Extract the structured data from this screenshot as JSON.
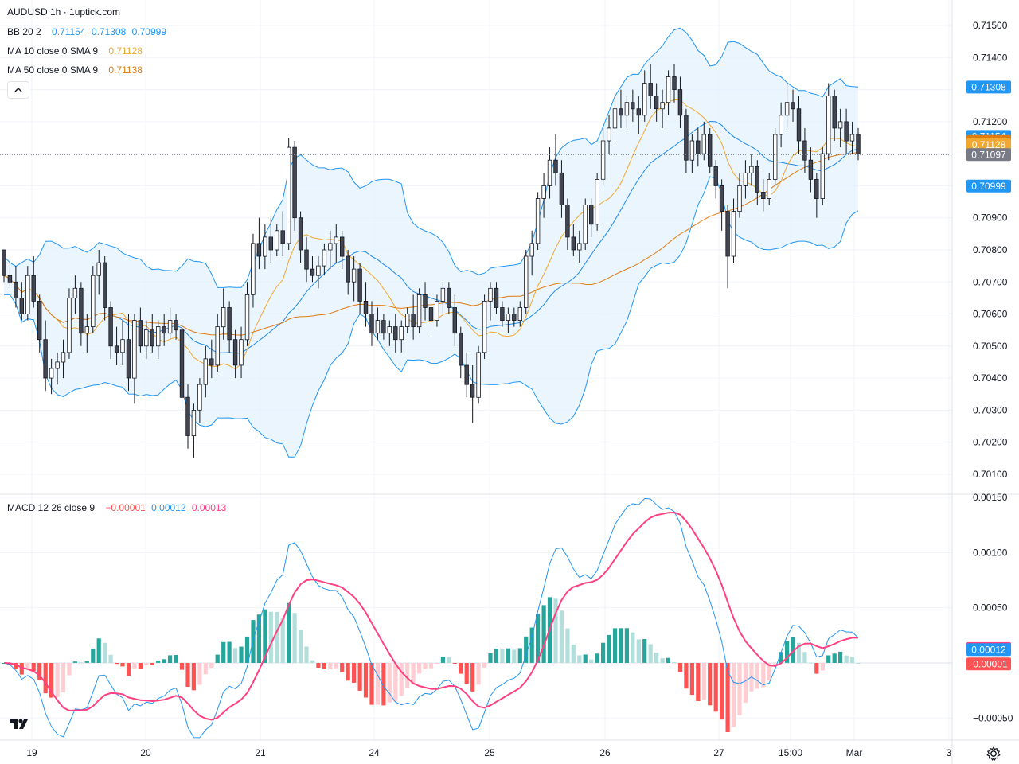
{
  "header": {
    "title": "AUDUSD 1h · 1uptick.com",
    "bb": {
      "label": "BB 20 2",
      "v1": "0.71154",
      "v2": "0.71308",
      "v3": "0.70999"
    },
    "ma10": {
      "label": "MA 10 close 0 SMA 9",
      "value": "0.71128"
    },
    "ma50": {
      "label": "MA 50 close 0 SMA 9",
      "value": "0.71138"
    },
    "macd": {
      "label": "MACD 12 26 close 9",
      "hist": "−0.00001",
      "macd": "0.00012",
      "signal": "0.00013"
    },
    "collapse_icon": "chevron-up-icon"
  },
  "colors": {
    "up_candle": "#ffffff",
    "down_candle": "#434651",
    "bb_line": "#2196f3",
    "bb_fill": "#e3f2fd",
    "ma10": "#f0a830",
    "ma50": "#e07b10",
    "macd_line": "#2196f3",
    "signal_line": "#ff4081",
    "hist_up_strong": "#26a69a",
    "hist_up_weak": "#b2dfdb",
    "hist_down_strong": "#ff5252",
    "hist_down_weak": "#ffcdd2",
    "last_price": "#787b86"
  },
  "price_axis": {
    "ticks": [
      "0.71500",
      "0.71400",
      "0.71300",
      "0.71200",
      "0.71100",
      "0.71000",
      "0.70900",
      "0.70800",
      "0.70700",
      "0.70600",
      "0.70500",
      "0.70400",
      "0.70300",
      "0.70200",
      "0.70100"
    ],
    "badges": [
      {
        "label": "0.71308",
        "color": "#2196f3"
      },
      {
        "label": "0.71154",
        "color": "#2196f3"
      },
      {
        "label": "0.71138",
        "color": "#e07b10"
      },
      {
        "label": "0.71128",
        "color": "#f0a830"
      },
      {
        "label": "0.71097",
        "color": "#787b86"
      },
      {
        "label": "0.70999",
        "color": "#2196f3"
      }
    ]
  },
  "macd_axis": {
    "ticks": [
      "0.00150",
      "0.00100",
      "0.00050",
      "−0.00050"
    ],
    "badges": [
      {
        "label": "0.00013",
        "color": "#ff4081"
      },
      {
        "label": "0.00012",
        "color": "#2196f3"
      },
      {
        "label": "-0.00001",
        "color": "#ff5252"
      }
    ]
  },
  "time_axis": {
    "labels": [
      "19",
      "20",
      "21",
      "24",
      "25",
      "26",
      "27",
      "15:00",
      "Mar",
      "3"
    ]
  },
  "icons": {
    "logo": "tradingview-logo-icon",
    "settings": "gear-icon"
  },
  "chart_data": {
    "type": "candlestick",
    "symbol": "AUDUSD",
    "interval": "1h",
    "price_range": [
      0.7007,
      0.7151
    ],
    "last_price": 0.71097,
    "series": [
      {
        "o": 0.708,
        "h": 0.708,
        "l": 0.707,
        "c": 0.7072
      },
      {
        "o": 0.7072,
        "h": 0.7076,
        "l": 0.7068,
        "c": 0.707
      },
      {
        "o": 0.707,
        "h": 0.7075,
        "l": 0.7062,
        "c": 0.7065
      },
      {
        "o": 0.7065,
        "h": 0.707,
        "l": 0.7058,
        "c": 0.706
      },
      {
        "o": 0.706,
        "h": 0.7075,
        "l": 0.7058,
        "c": 0.7072
      },
      {
        "o": 0.7072,
        "h": 0.7078,
        "l": 0.7062,
        "c": 0.7064
      },
      {
        "o": 0.7064,
        "h": 0.7066,
        "l": 0.7048,
        "c": 0.7052
      },
      {
        "o": 0.7052,
        "h": 0.7058,
        "l": 0.7036,
        "c": 0.704
      },
      {
        "o": 0.704,
        "h": 0.7046,
        "l": 0.7035,
        "c": 0.7043
      },
      {
        "o": 0.7043,
        "h": 0.7048,
        "l": 0.7038,
        "c": 0.7045
      },
      {
        "o": 0.7045,
        "h": 0.7052,
        "l": 0.704,
        "c": 0.7048
      },
      {
        "o": 0.7048,
        "h": 0.7068,
        "l": 0.7046,
        "c": 0.7065
      },
      {
        "o": 0.7065,
        "h": 0.7072,
        "l": 0.706,
        "c": 0.7068
      },
      {
        "o": 0.7068,
        "h": 0.707,
        "l": 0.705,
        "c": 0.7054
      },
      {
        "o": 0.7054,
        "h": 0.706,
        "l": 0.7048,
        "c": 0.7056
      },
      {
        "o": 0.7056,
        "h": 0.7075,
        "l": 0.7054,
        "c": 0.7072
      },
      {
        "o": 0.7072,
        "h": 0.708,
        "l": 0.7066,
        "c": 0.7076
      },
      {
        "o": 0.7076,
        "h": 0.7078,
        "l": 0.7058,
        "c": 0.7062
      },
      {
        "o": 0.7062,
        "h": 0.7064,
        "l": 0.7046,
        "c": 0.705
      },
      {
        "o": 0.705,
        "h": 0.7056,
        "l": 0.7044,
        "c": 0.7048
      },
      {
        "o": 0.7048,
        "h": 0.7058,
        "l": 0.7044,
        "c": 0.7052
      },
      {
        "o": 0.7052,
        "h": 0.706,
        "l": 0.7036,
        "c": 0.704
      },
      {
        "o": 0.704,
        "h": 0.706,
        "l": 0.7032,
        "c": 0.7058
      },
      {
        "o": 0.7058,
        "h": 0.7062,
        "l": 0.7048,
        "c": 0.705
      },
      {
        "o": 0.705,
        "h": 0.7058,
        "l": 0.7046,
        "c": 0.7055
      },
      {
        "o": 0.7055,
        "h": 0.706,
        "l": 0.7048,
        "c": 0.705
      },
      {
        "o": 0.705,
        "h": 0.7058,
        "l": 0.7046,
        "c": 0.7056
      },
      {
        "o": 0.7056,
        "h": 0.706,
        "l": 0.705,
        "c": 0.7054
      },
      {
        "o": 0.7054,
        "h": 0.7062,
        "l": 0.7052,
        "c": 0.7058
      },
      {
        "o": 0.7058,
        "h": 0.706,
        "l": 0.7052,
        "c": 0.7055
      },
      {
        "o": 0.7055,
        "h": 0.7058,
        "l": 0.703,
        "c": 0.7034
      },
      {
        "o": 0.7034,
        "h": 0.7038,
        "l": 0.7018,
        "c": 0.7022
      },
      {
        "o": 0.7022,
        "h": 0.7032,
        "l": 0.7015,
        "c": 0.703
      },
      {
        "o": 0.703,
        "h": 0.704,
        "l": 0.7026,
        "c": 0.7038
      },
      {
        "o": 0.7038,
        "h": 0.705,
        "l": 0.7034,
        "c": 0.7046
      },
      {
        "o": 0.7046,
        "h": 0.7052,
        "l": 0.704,
        "c": 0.7044
      },
      {
        "o": 0.7044,
        "h": 0.706,
        "l": 0.7042,
        "c": 0.7056
      },
      {
        "o": 0.7056,
        "h": 0.7068,
        "l": 0.7052,
        "c": 0.7062
      },
      {
        "o": 0.7062,
        "h": 0.7064,
        "l": 0.7048,
        "c": 0.7052
      },
      {
        "o": 0.7052,
        "h": 0.7055,
        "l": 0.704,
        "c": 0.7044
      },
      {
        "o": 0.7044,
        "h": 0.7056,
        "l": 0.704,
        "c": 0.7052
      },
      {
        "o": 0.7052,
        "h": 0.707,
        "l": 0.705,
        "c": 0.7066
      },
      {
        "o": 0.7066,
        "h": 0.7085,
        "l": 0.7062,
        "c": 0.7082
      },
      {
        "o": 0.7082,
        "h": 0.709,
        "l": 0.7074,
        "c": 0.7078
      },
      {
        "o": 0.7078,
        "h": 0.7088,
        "l": 0.7074,
        "c": 0.7084
      },
      {
        "o": 0.7084,
        "h": 0.709,
        "l": 0.7076,
        "c": 0.708
      },
      {
        "o": 0.708,
        "h": 0.7088,
        "l": 0.7078,
        "c": 0.7086
      },
      {
        "o": 0.7086,
        "h": 0.7092,
        "l": 0.7078,
        "c": 0.7082
      },
      {
        "o": 0.7082,
        "h": 0.7115,
        "l": 0.708,
        "c": 0.7112
      },
      {
        "o": 0.7112,
        "h": 0.7114,
        "l": 0.7086,
        "c": 0.709
      },
      {
        "o": 0.709,
        "h": 0.7092,
        "l": 0.7076,
        "c": 0.708
      },
      {
        "o": 0.708,
        "h": 0.7084,
        "l": 0.707,
        "c": 0.7074
      },
      {
        "o": 0.7074,
        "h": 0.7078,
        "l": 0.707,
        "c": 0.7072
      },
      {
        "o": 0.7072,
        "h": 0.7078,
        "l": 0.7068,
        "c": 0.7075
      },
      {
        "o": 0.7075,
        "h": 0.7082,
        "l": 0.7072,
        "c": 0.708
      },
      {
        "o": 0.708,
        "h": 0.7086,
        "l": 0.7074,
        "c": 0.7082
      },
      {
        "o": 0.7082,
        "h": 0.7088,
        "l": 0.7076,
        "c": 0.7084
      },
      {
        "o": 0.7084,
        "h": 0.7086,
        "l": 0.7074,
        "c": 0.7078
      },
      {
        "o": 0.7078,
        "h": 0.708,
        "l": 0.7066,
        "c": 0.707
      },
      {
        "o": 0.707,
        "h": 0.7078,
        "l": 0.7064,
        "c": 0.7074
      },
      {
        "o": 0.7074,
        "h": 0.7076,
        "l": 0.706,
        "c": 0.7064
      },
      {
        "o": 0.7064,
        "h": 0.707,
        "l": 0.7056,
        "c": 0.706
      },
      {
        "o": 0.706,
        "h": 0.7064,
        "l": 0.705,
        "c": 0.7054
      },
      {
        "o": 0.7054,
        "h": 0.7062,
        "l": 0.7052,
        "c": 0.7058
      },
      {
        "o": 0.7058,
        "h": 0.706,
        "l": 0.7052,
        "c": 0.7054
      },
      {
        "o": 0.7054,
        "h": 0.7058,
        "l": 0.705,
        "c": 0.7056
      },
      {
        "o": 0.7056,
        "h": 0.706,
        "l": 0.7048,
        "c": 0.7052
      },
      {
        "o": 0.7052,
        "h": 0.7058,
        "l": 0.7048,
        "c": 0.7056
      },
      {
        "o": 0.7056,
        "h": 0.7062,
        "l": 0.7054,
        "c": 0.706
      },
      {
        "o": 0.706,
        "h": 0.7066,
        "l": 0.7052,
        "c": 0.7056
      },
      {
        "o": 0.7056,
        "h": 0.7068,
        "l": 0.7054,
        "c": 0.7066
      },
      {
        "o": 0.7066,
        "h": 0.707,
        "l": 0.7058,
        "c": 0.7062
      },
      {
        "o": 0.7062,
        "h": 0.7066,
        "l": 0.7054,
        "c": 0.7058
      },
      {
        "o": 0.7058,
        "h": 0.7066,
        "l": 0.7056,
        "c": 0.7064
      },
      {
        "o": 0.7064,
        "h": 0.707,
        "l": 0.706,
        "c": 0.7068
      },
      {
        "o": 0.7068,
        "h": 0.707,
        "l": 0.706,
        "c": 0.7062
      },
      {
        "o": 0.7062,
        "h": 0.7066,
        "l": 0.705,
        "c": 0.7054
      },
      {
        "o": 0.7054,
        "h": 0.7056,
        "l": 0.704,
        "c": 0.7044
      },
      {
        "o": 0.7044,
        "h": 0.7048,
        "l": 0.7034,
        "c": 0.7038
      },
      {
        "o": 0.7038,
        "h": 0.7044,
        "l": 0.7026,
        "c": 0.7034
      },
      {
        "o": 0.7034,
        "h": 0.705,
        "l": 0.7032,
        "c": 0.7048
      },
      {
        "o": 0.7048,
        "h": 0.7066,
        "l": 0.7046,
        "c": 0.7064
      },
      {
        "o": 0.7064,
        "h": 0.707,
        "l": 0.7058,
        "c": 0.7068
      },
      {
        "o": 0.7068,
        "h": 0.707,
        "l": 0.706,
        "c": 0.7062
      },
      {
        "o": 0.7062,
        "h": 0.7064,
        "l": 0.7056,
        "c": 0.7058
      },
      {
        "o": 0.7058,
        "h": 0.7062,
        "l": 0.7054,
        "c": 0.706
      },
      {
        "o": 0.706,
        "h": 0.7062,
        "l": 0.7056,
        "c": 0.7058
      },
      {
        "o": 0.7058,
        "h": 0.7064,
        "l": 0.7056,
        "c": 0.7062
      },
      {
        "o": 0.7062,
        "h": 0.708,
        "l": 0.706,
        "c": 0.7078
      },
      {
        "o": 0.7078,
        "h": 0.7086,
        "l": 0.7072,
        "c": 0.7082
      },
      {
        "o": 0.7082,
        "h": 0.7098,
        "l": 0.708,
        "c": 0.7096
      },
      {
        "o": 0.7096,
        "h": 0.7104,
        "l": 0.709,
        "c": 0.71
      },
      {
        "o": 0.71,
        "h": 0.7112,
        "l": 0.7096,
        "c": 0.7108
      },
      {
        "o": 0.7108,
        "h": 0.7116,
        "l": 0.71,
        "c": 0.7104
      },
      {
        "o": 0.7104,
        "h": 0.7108,
        "l": 0.709,
        "c": 0.7094
      },
      {
        "o": 0.7094,
        "h": 0.7096,
        "l": 0.708,
        "c": 0.7084
      },
      {
        "o": 0.7084,
        "h": 0.7088,
        "l": 0.7078,
        "c": 0.708
      },
      {
        "o": 0.708,
        "h": 0.7086,
        "l": 0.7076,
        "c": 0.7082
      },
      {
        "o": 0.7082,
        "h": 0.7096,
        "l": 0.708,
        "c": 0.7094
      },
      {
        "o": 0.7094,
        "h": 0.7096,
        "l": 0.7084,
        "c": 0.7088
      },
      {
        "o": 0.7088,
        "h": 0.7104,
        "l": 0.7086,
        "c": 0.7102
      },
      {
        "o": 0.7102,
        "h": 0.7118,
        "l": 0.71,
        "c": 0.7114
      },
      {
        "o": 0.7114,
        "h": 0.7122,
        "l": 0.711,
        "c": 0.7118
      },
      {
        "o": 0.7118,
        "h": 0.7128,
        "l": 0.7114,
        "c": 0.7124
      },
      {
        "o": 0.7124,
        "h": 0.713,
        "l": 0.7118,
        "c": 0.7122
      },
      {
        "o": 0.7122,
        "h": 0.7128,
        "l": 0.7118,
        "c": 0.7126
      },
      {
        "o": 0.7126,
        "h": 0.713,
        "l": 0.712,
        "c": 0.7124
      },
      {
        "o": 0.7124,
        "h": 0.7128,
        "l": 0.7116,
        "c": 0.7122
      },
      {
        "o": 0.7122,
        "h": 0.7136,
        "l": 0.712,
        "c": 0.7132
      },
      {
        "o": 0.7132,
        "h": 0.7138,
        "l": 0.7124,
        "c": 0.7128
      },
      {
        "o": 0.7128,
        "h": 0.7132,
        "l": 0.712,
        "c": 0.7124
      },
      {
        "o": 0.7124,
        "h": 0.713,
        "l": 0.7118,
        "c": 0.7126
      },
      {
        "o": 0.7126,
        "h": 0.7136,
        "l": 0.7122,
        "c": 0.7134
      },
      {
        "o": 0.7134,
        "h": 0.7138,
        "l": 0.7126,
        "c": 0.713
      },
      {
        "o": 0.713,
        "h": 0.7134,
        "l": 0.7118,
        "c": 0.7122
      },
      {
        "o": 0.7122,
        "h": 0.7124,
        "l": 0.7104,
        "c": 0.7108
      },
      {
        "o": 0.7108,
        "h": 0.7116,
        "l": 0.7104,
        "c": 0.7114
      },
      {
        "o": 0.7114,
        "h": 0.7118,
        "l": 0.7106,
        "c": 0.711
      },
      {
        "o": 0.711,
        "h": 0.712,
        "l": 0.7108,
        "c": 0.7116
      },
      {
        "o": 0.7116,
        "h": 0.7118,
        "l": 0.7104,
        "c": 0.7106
      },
      {
        "o": 0.7106,
        "h": 0.7108,
        "l": 0.7096,
        "c": 0.71
      },
      {
        "o": 0.71,
        "h": 0.7102,
        "l": 0.7086,
        "c": 0.7092
      },
      {
        "o": 0.7092,
        "h": 0.7094,
        "l": 0.7068,
        "c": 0.7078
      },
      {
        "o": 0.7078,
        "h": 0.7096,
        "l": 0.7076,
        "c": 0.7092
      },
      {
        "o": 0.7092,
        "h": 0.7104,
        "l": 0.709,
        "c": 0.71
      },
      {
        "o": 0.71,
        "h": 0.7108,
        "l": 0.7096,
        "c": 0.7104
      },
      {
        "o": 0.7104,
        "h": 0.711,
        "l": 0.71,
        "c": 0.7106
      },
      {
        "o": 0.7106,
        "h": 0.7108,
        "l": 0.7094,
        "c": 0.7098
      },
      {
        "o": 0.7098,
        "h": 0.7102,
        "l": 0.7092,
        "c": 0.7096
      },
      {
        "o": 0.7096,
        "h": 0.7104,
        "l": 0.7094,
        "c": 0.7102
      },
      {
        "o": 0.7102,
        "h": 0.7118,
        "l": 0.71,
        "c": 0.7116
      },
      {
        "o": 0.7116,
        "h": 0.7126,
        "l": 0.7112,
        "c": 0.7122
      },
      {
        "o": 0.7122,
        "h": 0.7132,
        "l": 0.7118,
        "c": 0.7126
      },
      {
        "o": 0.7126,
        "h": 0.713,
        "l": 0.712,
        "c": 0.7124
      },
      {
        "o": 0.7124,
        "h": 0.7128,
        "l": 0.711,
        "c": 0.7114
      },
      {
        "o": 0.7114,
        "h": 0.7118,
        "l": 0.7104,
        "c": 0.7108
      },
      {
        "o": 0.7108,
        "h": 0.7112,
        "l": 0.7098,
        "c": 0.7102
      },
      {
        "o": 0.7102,
        "h": 0.7104,
        "l": 0.709,
        "c": 0.7096
      },
      {
        "o": 0.7096,
        "h": 0.7112,
        "l": 0.7094,
        "c": 0.711
      },
      {
        "o": 0.711,
        "h": 0.7132,
        "l": 0.7108,
        "c": 0.7128
      },
      {
        "o": 0.7128,
        "h": 0.713,
        "l": 0.7114,
        "c": 0.7118
      },
      {
        "o": 0.7118,
        "h": 0.7124,
        "l": 0.7112,
        "c": 0.712
      },
      {
        "o": 0.712,
        "h": 0.7124,
        "l": 0.711,
        "c": 0.7114
      },
      {
        "o": 0.7114,
        "h": 0.712,
        "l": 0.711,
        "c": 0.7116
      },
      {
        "o": 0.7116,
        "h": 0.7118,
        "l": 0.7108,
        "c": 0.711
      }
    ],
    "indicators": {
      "bb": {
        "period": 20,
        "stddev": 2,
        "basis": 0.71154,
        "upper": 0.71308,
        "lower": 0.70999
      },
      "ma10": {
        "period": 10,
        "value": 0.71128
      },
      "ma50": {
        "period": 50,
        "value": 0.71138
      },
      "macd": {
        "fast": 12,
        "slow": 26,
        "signal": 9,
        "histogram": -1e-05,
        "macd": 0.00012,
        "signal_value": 0.00013,
        "range": [
          -0.0007,
          0.0015
        ]
      }
    },
    "x_labels": [
      "19",
      "20",
      "21",
      "24",
      "25",
      "26",
      "27",
      "15:00",
      "Mar",
      "3"
    ],
    "grid": true
  }
}
